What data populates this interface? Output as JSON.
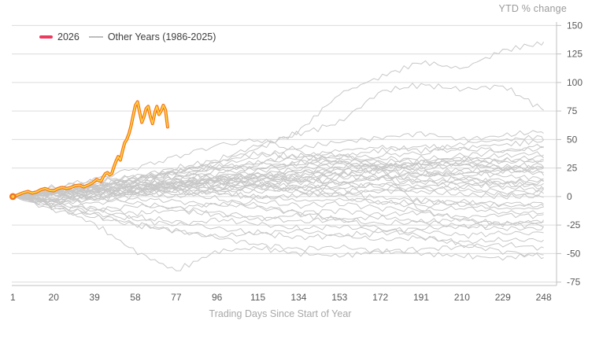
{
  "colors": {
    "accent_legend": "#ED3A5F",
    "highlight_outer": "#F2731E",
    "highlight_inner": "#FFD23F",
    "gray_series": "#c7c7c7",
    "gridline": "#dcdcdc",
    "axis_line": "#c2c2c2",
    "tick_label": "#595959",
    "muted_label": "#a8a8a8"
  },
  "legend": {
    "item_2026": "2026",
    "item_other": "Other Years (1986-2025)"
  },
  "chart_data": {
    "type": "line",
    "title": "",
    "xlabel": "Trading Days Since Start of Year",
    "ylabel": "YTD % change",
    "x_ticks": [
      1,
      20,
      39,
      58,
      77,
      96,
      115,
      134,
      153,
      172,
      191,
      210,
      229,
      248
    ],
    "y_ticks": [
      150,
      125,
      100,
      75,
      50,
      25,
      0,
      -25,
      -50,
      -75
    ],
    "xlim": [
      0.5,
      254
    ],
    "ylim": [
      -78,
      153
    ],
    "grid": "horizontal",
    "legend_position": "top-left",
    "highlight_series": {
      "name": "2026",
      "start_marker": true,
      "points": [
        [
          1,
          0
        ],
        [
          2,
          0.5
        ],
        [
          4,
          2
        ],
        [
          6,
          3.5
        ],
        [
          8,
          4.5
        ],
        [
          10,
          3
        ],
        [
          12,
          4
        ],
        [
          14,
          6
        ],
        [
          16,
          7
        ],
        [
          18,
          5.5
        ],
        [
          20,
          5
        ],
        [
          22,
          7
        ],
        [
          24,
          8
        ],
        [
          26,
          7
        ],
        [
          28,
          8
        ],
        [
          30,
          9.5
        ],
        [
          32,
          10
        ],
        [
          34,
          8.5
        ],
        [
          36,
          10
        ],
        [
          38,
          12
        ],
        [
          40,
          15
        ],
        [
          41,
          14
        ],
        [
          42,
          13.5
        ],
        [
          43,
          17
        ],
        [
          44,
          20
        ],
        [
          45,
          21
        ],
        [
          46,
          19
        ],
        [
          47,
          20
        ],
        [
          48,
          26
        ],
        [
          49,
          31
        ],
        [
          50,
          35
        ],
        [
          51,
          32
        ],
        [
          52,
          40
        ],
        [
          53,
          47
        ],
        [
          54,
          50
        ],
        [
          55,
          55
        ],
        [
          56,
          62
        ],
        [
          57,
          71
        ],
        [
          58,
          80
        ],
        [
          59,
          83
        ],
        [
          60,
          74
        ],
        [
          61,
          65
        ],
        [
          62,
          70
        ],
        [
          63,
          77
        ],
        [
          64,
          79
        ],
        [
          65,
          70
        ],
        [
          66,
          64
        ],
        [
          67,
          73
        ],
        [
          68,
          79
        ],
        [
          69,
          72
        ],
        [
          70,
          75
        ],
        [
          71,
          80
        ],
        [
          72,
          76
        ],
        [
          73,
          61
        ]
      ]
    },
    "other_series": {
      "name": "Other Years (1986-2025)",
      "waypoint_days": [
        1,
        20,
        39,
        58,
        77,
        96,
        115,
        134,
        153,
        172,
        191,
        210,
        229,
        248
      ],
      "years": [
        {
          "year": 1986,
          "values": [
            0,
            4,
            8,
            12,
            10,
            14,
            18,
            15,
            12,
            16,
            20,
            18,
            22,
            25
          ]
        },
        {
          "year": 1987,
          "values": [
            0,
            8,
            14,
            18,
            22,
            26,
            30,
            34,
            38,
            26,
            -12,
            -20,
            -24,
            -22
          ]
        },
        {
          "year": 1988,
          "values": [
            0,
            3,
            7,
            12,
            10,
            16,
            20,
            24,
            28,
            26,
            30,
            34,
            32,
            35
          ]
        },
        {
          "year": 1989,
          "values": [
            0,
            6,
            10,
            16,
            22,
            28,
            35,
            42,
            48,
            52,
            55,
            50,
            54,
            57
          ]
        },
        {
          "year": 1990,
          "values": [
            0,
            2,
            -2,
            2,
            0,
            4,
            0,
            -4,
            -2,
            -6,
            -4,
            -8,
            -10,
            -11
          ]
        },
        {
          "year": 1991,
          "values": [
            0,
            -3,
            5,
            12,
            18,
            24,
            30,
            36,
            40,
            44,
            40,
            46,
            50,
            52
          ]
        },
        {
          "year": 1992,
          "values": [
            0,
            4,
            9,
            14,
            20,
            26,
            24,
            30,
            36,
            40,
            44,
            42,
            46,
            48
          ]
        },
        {
          "year": 1993,
          "values": [
            0,
            2,
            6,
            10,
            16,
            22,
            28,
            26,
            32,
            36,
            38,
            42,
            40,
            44
          ]
        },
        {
          "year": 1994,
          "values": [
            0,
            -5,
            -2,
            4,
            8,
            6,
            10,
            8,
            12,
            10,
            14,
            10,
            12,
            8
          ]
        },
        {
          "year": 1995,
          "values": [
            0,
            5,
            8,
            6,
            12,
            18,
            22,
            28,
            30,
            34,
            30,
            36,
            40,
            42
          ]
        },
        {
          "year": 1996,
          "values": [
            0,
            -2,
            4,
            8,
            14,
            18,
            16,
            22,
            26,
            30,
            34,
            32,
            36,
            38
          ]
        },
        {
          "year": 1997,
          "values": [
            0,
            6,
            4,
            10,
            14,
            12,
            18,
            22,
            20,
            26,
            28,
            32,
            30,
            32
          ]
        },
        {
          "year": 1998,
          "values": [
            0,
            -6,
            -3,
            1,
            5,
            3,
            -1,
            1,
            3,
            -1,
            -3,
            -5,
            -8,
            -8
          ]
        },
        {
          "year": 1999,
          "values": [
            0,
            3,
            8,
            15,
            22,
            30,
            42,
            57,
            90,
            105,
            118,
            112,
            128,
            135
          ]
        },
        {
          "year": 2000,
          "values": [
            0,
            5,
            10,
            15,
            20,
            15,
            10,
            5,
            0,
            -5,
            -8,
            -5,
            -6,
            -6
          ]
        },
        {
          "year": 2001,
          "values": [
            0,
            -3,
            -6,
            -2,
            -4,
            -8,
            -4,
            -8,
            -6,
            -10,
            -12,
            -10,
            -14,
            -14
          ]
        },
        {
          "year": 2002,
          "values": [
            0,
            -8,
            -12,
            -8,
            -10,
            -6,
            -10,
            -14,
            -12,
            -16,
            -14,
            -18,
            -16,
            -17
          ]
        },
        {
          "year": 2003,
          "values": [
            0,
            -4,
            2,
            8,
            12,
            16,
            14,
            20,
            24,
            28,
            24,
            28,
            26,
            28
          ]
        },
        {
          "year": 2004,
          "values": [
            0,
            1,
            5,
            3,
            8,
            12,
            10,
            14,
            12,
            16,
            12,
            14,
            10,
            10
          ]
        },
        {
          "year": 2005,
          "values": [
            0,
            2,
            8,
            6,
            12,
            16,
            20,
            18,
            24,
            22,
            26,
            28,
            32,
            30
          ]
        },
        {
          "year": 2006,
          "values": [
            0,
            3,
            6,
            10,
            8,
            14,
            18,
            16,
            20,
            24,
            20,
            24,
            22,
            22
          ]
        },
        {
          "year": 2007,
          "values": [
            0,
            8,
            15,
            25,
            35,
            45,
            50,
            40,
            30,
            25,
            28,
            30,
            26,
            24
          ]
        },
        {
          "year": 2008,
          "values": [
            0,
            6,
            12,
            8,
            4,
            -2,
            -8,
            -14,
            -20,
            -28,
            -35,
            -42,
            -48,
            -52
          ]
        },
        {
          "year": 2009,
          "values": [
            0,
            -8,
            -16,
            -24,
            -30,
            -36,
            -42,
            -46,
            -44,
            -48,
            -46,
            -44,
            -42,
            -45
          ]
        },
        {
          "year": 2010,
          "values": [
            0,
            -2,
            3,
            7,
            12,
            10,
            16,
            14,
            18,
            22,
            18,
            20,
            24,
            20
          ]
        },
        {
          "year": 2011,
          "values": [
            0,
            -5,
            -10,
            -15,
            -12,
            -16,
            -20,
            -16,
            -20,
            -18,
            -22,
            -20,
            -24,
            -21
          ]
        },
        {
          "year": 2012,
          "values": [
            0,
            3,
            -1,
            5,
            9,
            7,
            11,
            9,
            7,
            11,
            9,
            12,
            8,
            6
          ]
        },
        {
          "year": 2013,
          "values": [
            0,
            4,
            10,
            16,
            22,
            30,
            38,
            35,
            30,
            26,
            30,
            28,
            24,
            26
          ]
        },
        {
          "year": 2014,
          "values": [
            0,
            2,
            4,
            8,
            6,
            10,
            8,
            6,
            10,
            8,
            6,
            8,
            4,
            4
          ]
        },
        {
          "year": 2015,
          "values": [
            0,
            4,
            0,
            -6,
            -10,
            -14,
            -18,
            -22,
            -20,
            -24,
            -22,
            -26,
            -24,
            -25
          ]
        },
        {
          "year": 2016,
          "values": [
            0,
            -10,
            -15,
            -20,
            -25,
            -20,
            -24,
            -28,
            -26,
            -30,
            -28,
            -26,
            -28,
            -28
          ]
        },
        {
          "year": 2017,
          "values": [
            0,
            5,
            12,
            18,
            25,
            32,
            45,
            55,
            65,
            92,
            98,
            94,
            97,
            76
          ]
        },
        {
          "year": 2018,
          "values": [
            0,
            2,
            6,
            4,
            10,
            14,
            12,
            16,
            20,
            16,
            18,
            22,
            18,
            16
          ]
        },
        {
          "year": 2019,
          "values": [
            0,
            -3,
            1,
            6,
            10,
            8,
            14,
            12,
            16,
            18,
            14,
            16,
            12,
            14
          ]
        },
        {
          "year": 2020,
          "values": [
            0,
            -8,
            -24,
            -48,
            -65,
            -48,
            -45,
            -50,
            -52,
            -48,
            -50,
            -52,
            -54,
            -50
          ]
        },
        {
          "year": 2021,
          "values": [
            0,
            4,
            8,
            12,
            16,
            20,
            25,
            30,
            35,
            30,
            22,
            16,
            14,
            12
          ]
        },
        {
          "year": 2022,
          "values": [
            0,
            -6,
            -12,
            -18,
            -22,
            -28,
            -32,
            -30,
            -34,
            -32,
            -30,
            -34,
            -32,
            -32
          ]
        },
        {
          "year": 2023,
          "values": [
            0,
            -12,
            -18,
            -25,
            -30,
            -35,
            -32,
            -36,
            -34,
            -38,
            -36,
            -40,
            -38,
            -38
          ]
        },
        {
          "year": 2024,
          "values": [
            0,
            -4,
            0,
            4,
            2,
            6,
            4,
            8,
            6,
            4,
            8,
            6,
            2,
            2
          ]
        },
        {
          "year": 2025,
          "values": [
            0,
            3,
            6,
            2,
            6,
            4,
            8,
            4,
            2,
            6,
            4,
            2,
            0,
            0
          ]
        }
      ]
    },
    "render_hints": {
      "jitter_amplitude": 3.0,
      "jitter_ramp_days": 15,
      "sample_step_days": 2
    }
  }
}
